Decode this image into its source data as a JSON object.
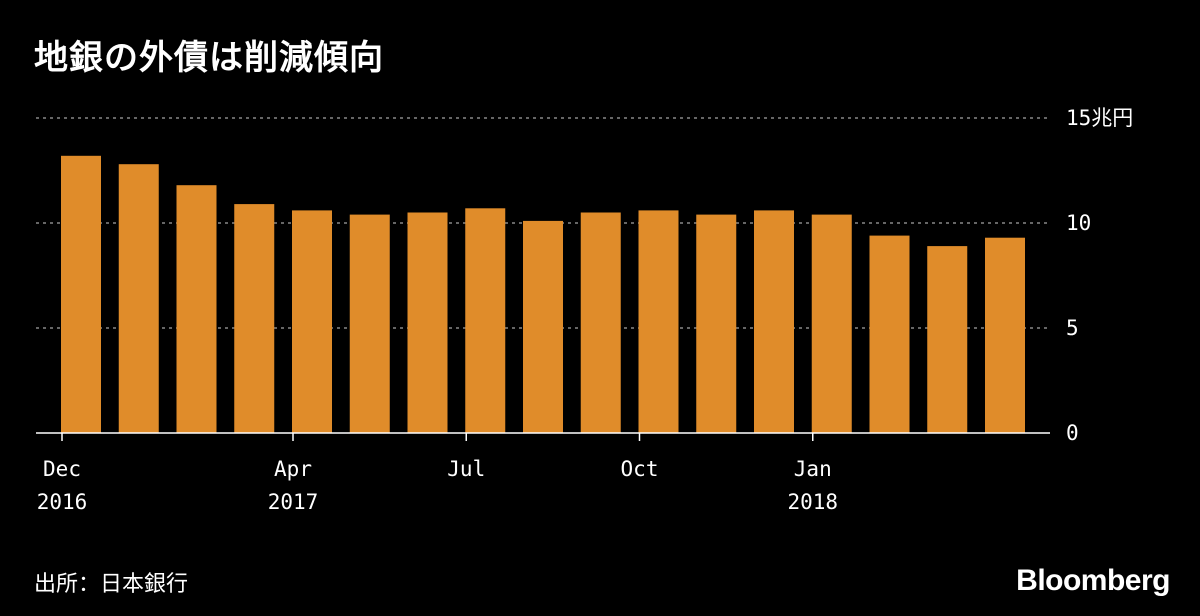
{
  "title": "地銀の外債は削減傾向",
  "source": "出所：日本銀行",
  "brand": "Bloomberg",
  "colors": {
    "background": "#000000",
    "bar": "#e08c2a",
    "text": "#ffffff",
    "grid": "#888888"
  },
  "chart_data": {
    "type": "bar",
    "title": "地銀の外債は削減傾向",
    "unit_label": "15兆円",
    "categories": [
      "2016-12",
      "2017-01",
      "2017-02",
      "2017-03",
      "2017-04",
      "2017-05",
      "2017-06",
      "2017-07",
      "2017-08",
      "2017-09",
      "2017-10",
      "2017-11",
      "2017-12",
      "2018-01",
      "2018-02",
      "2018-03",
      "2018-04"
    ],
    "values": [
      13.2,
      12.8,
      11.8,
      10.9,
      10.6,
      10.4,
      10.5,
      10.7,
      10.1,
      10.5,
      10.6,
      10.4,
      10.6,
      10.4,
      9.4,
      8.9,
      9.3
    ],
    "ylim": [
      0,
      15
    ],
    "y_ticks": [
      {
        "value": 0,
        "label": "0"
      },
      {
        "value": 5,
        "label": "5"
      },
      {
        "value": 10,
        "label": "10"
      },
      {
        "value": 15,
        "label": "15兆円"
      }
    ],
    "x_ticks": [
      {
        "index": 0,
        "line1": "Dec",
        "line2": "2016"
      },
      {
        "index": 4,
        "line1": "Apr",
        "line2": "2017"
      },
      {
        "index": 7,
        "line1": "Jul",
        "line2": ""
      },
      {
        "index": 10,
        "line1": "Oct",
        "line2": ""
      },
      {
        "index": 13,
        "line1": "Jan",
        "line2": "2018"
      }
    ],
    "grid": true,
    "y_axis_side": "right"
  }
}
